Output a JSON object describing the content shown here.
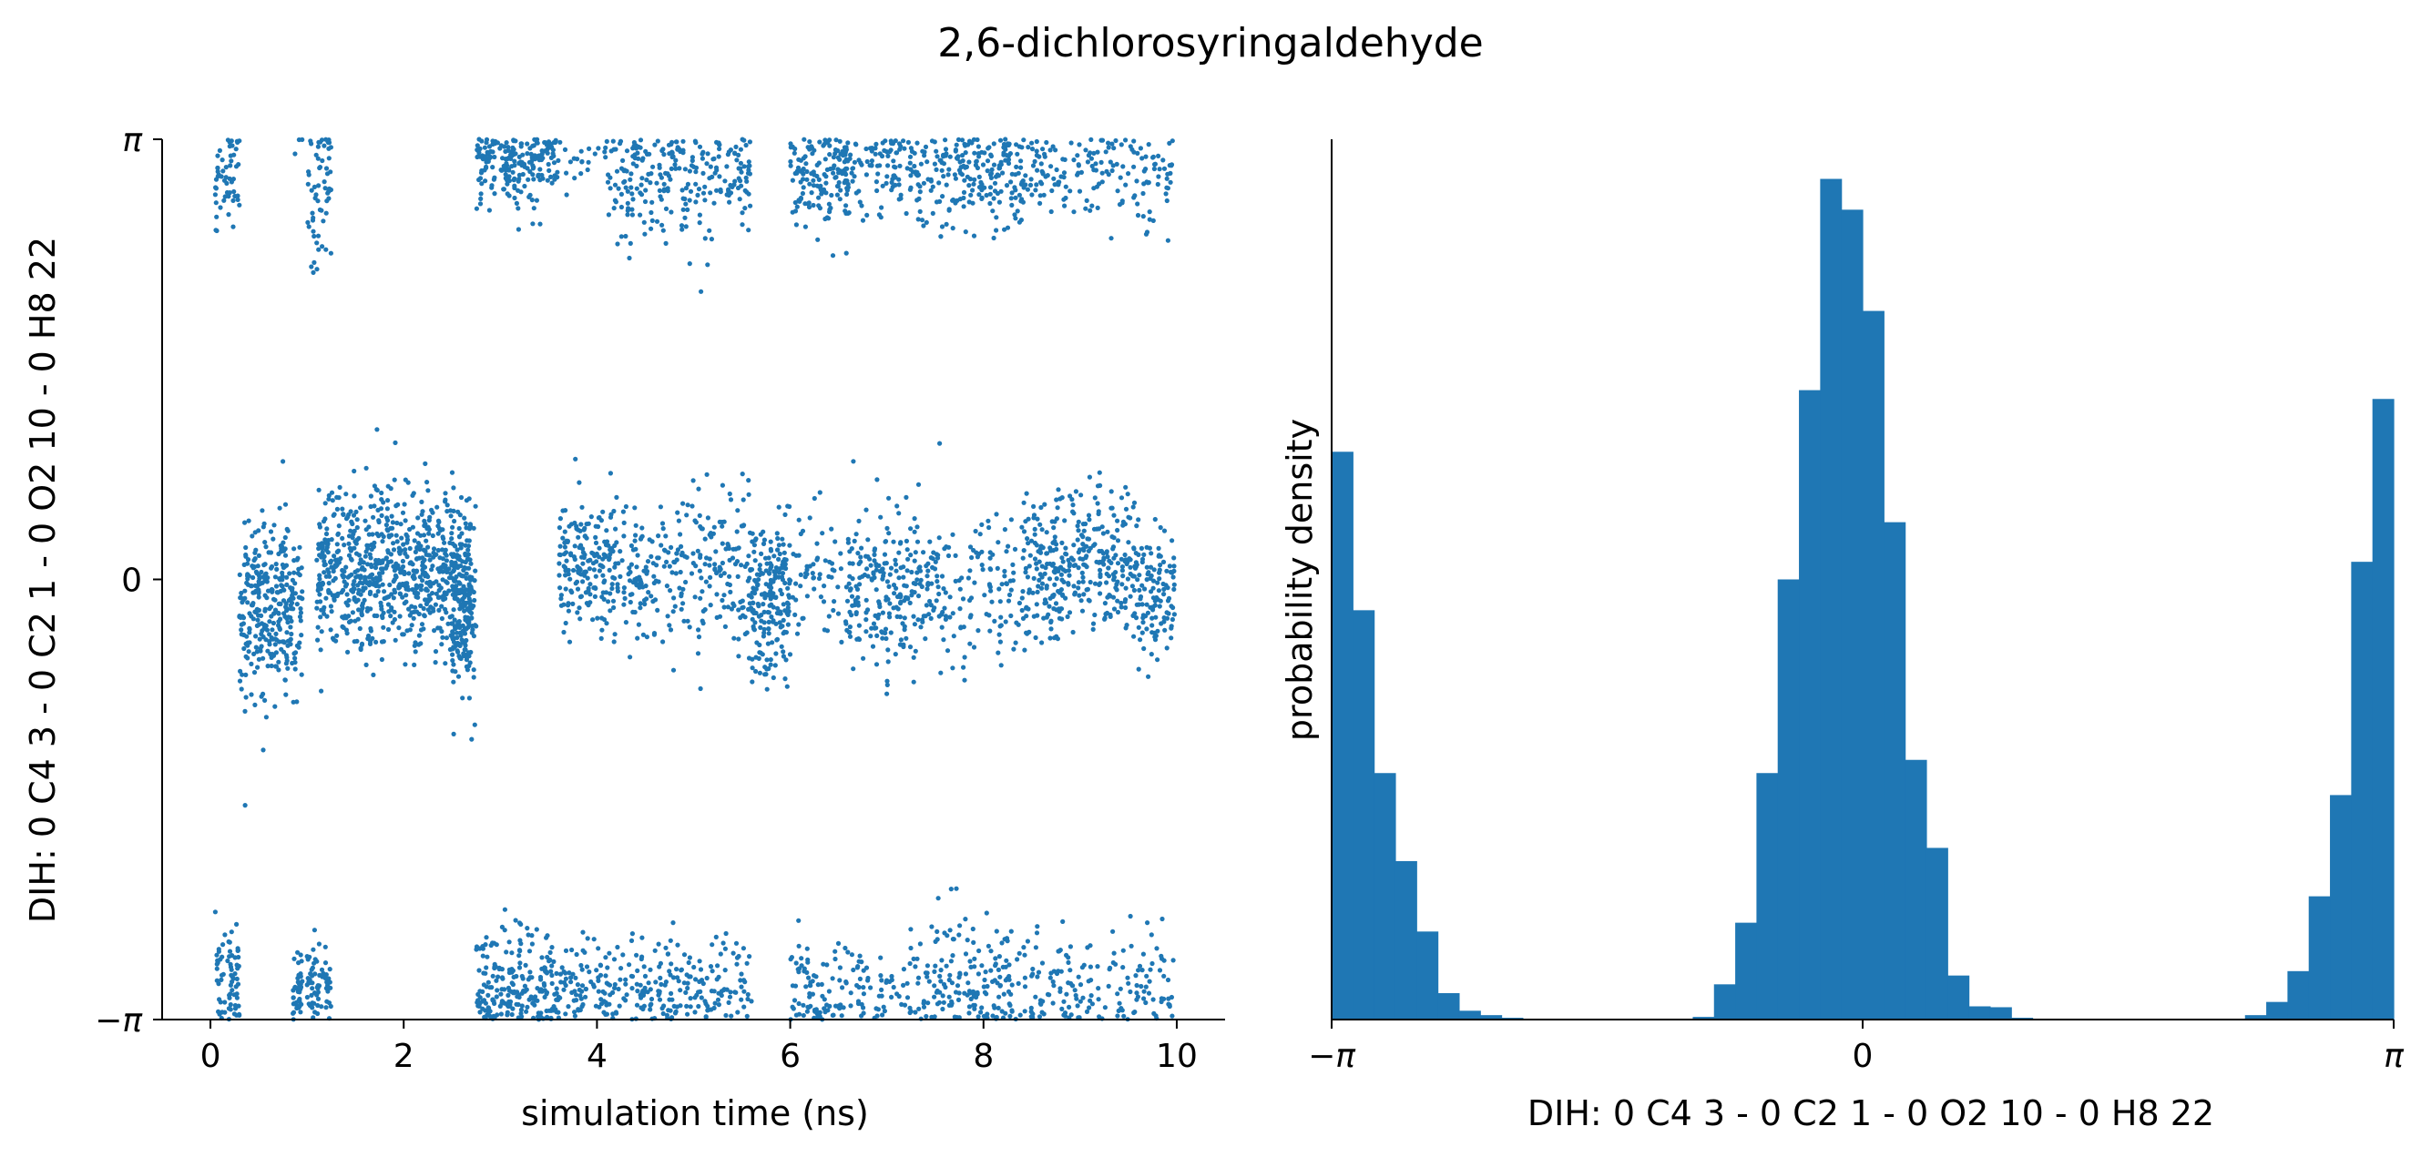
{
  "figure": {
    "title": "2,6-dichlorosyringaldehyde",
    "series_color": "#1f77b4"
  },
  "chart_data": [
    {
      "type": "scatter",
      "title": "",
      "xlabel": "simulation time (ns)",
      "ylabel": "DIH:  0 C4 3 -  0 C2 1 -  0 O2 10 -  0 H8 22",
      "xlim": [
        -0.5,
        10.5
      ],
      "ylim": [
        -3.14159,
        3.14159
      ],
      "xticks": [
        0,
        2,
        4,
        6,
        8,
        10
      ],
      "xtick_labels": [
        "0",
        "2",
        "4",
        "6",
        "8",
        "10"
      ],
      "yticks": [
        -3.14159,
        0,
        3.14159
      ],
      "ytick_labels": [
        "−π",
        "0",
        "π"
      ],
      "grid": false,
      "segments": [
        {
          "t": [
            0.05,
            0.3
          ],
          "states": [
            {
              "c": 2.9,
              "s": 0.2,
              "w": 0.4
            },
            {
              "c": -2.9,
              "s": 0.25,
              "w": 0.6
            }
          ]
        },
        {
          "t": [
            0.3,
            0.95
          ],
          "states": [
            {
              "c": -0.2,
              "s": 0.3,
              "w": 1.0
            }
          ]
        },
        {
          "t": [
            0.85,
            0.95
          ],
          "states": [
            {
              "c": -2.95,
              "s": 0.15,
              "w": 0.5
            }
          ]
        },
        {
          "t": [
            1.0,
            1.25
          ],
          "states": [
            {
              "c": 2.8,
              "s": 0.3,
              "w": 0.5
            },
            {
              "c": -2.9,
              "s": 0.2,
              "w": 0.5
            }
          ]
        },
        {
          "t": [
            1.1,
            2.7
          ],
          "states": [
            {
              "c": 0.05,
              "s": 0.28,
              "w": 1.0
            }
          ]
        },
        {
          "t": [
            2.5,
            2.75
          ],
          "states": [
            {
              "c": -0.3,
              "s": 0.3,
              "w": 1.0
            }
          ]
        },
        {
          "t": [
            2.75,
            3.6
          ],
          "states": [
            {
              "c": 3.0,
              "s": 0.2,
              "w": 0.5
            },
            {
              "c": -2.9,
              "s": 0.22,
              "w": 0.5
            }
          ]
        },
        {
          "t": [
            3.6,
            4.1
          ],
          "states": [
            {
              "c": 0.1,
              "s": 0.25,
              "w": 0.6
            },
            {
              "c": -2.95,
              "s": 0.2,
              "w": 0.4
            }
          ]
        },
        {
          "t": [
            4.1,
            5.6
          ],
          "states": [
            {
              "c": 2.9,
              "s": 0.25,
              "w": 0.35
            },
            {
              "c": 0.05,
              "s": 0.25,
              "w": 0.4
            },
            {
              "c": -2.95,
              "s": 0.2,
              "w": 0.25
            }
          ]
        },
        {
          "t": [
            5.6,
            6.0
          ],
          "states": [
            {
              "c": -0.15,
              "s": 0.28,
              "w": 1.0
            }
          ]
        },
        {
          "t": [
            6.0,
            6.6
          ],
          "states": [
            {
              "c": 2.9,
              "s": 0.2,
              "w": 0.5
            },
            {
              "c": -2.95,
              "s": 0.2,
              "w": 0.3
            },
            {
              "c": 0.0,
              "s": 0.25,
              "w": 0.2
            }
          ]
        },
        {
          "t": [
            6.6,
            7.5
          ],
          "states": [
            {
              "c": -0.05,
              "s": 0.28,
              "w": 0.5
            },
            {
              "c": 2.9,
              "s": 0.2,
              "w": 0.3
            },
            {
              "c": -2.95,
              "s": 0.2,
              "w": 0.2
            }
          ]
        },
        {
          "t": [
            7.5,
            8.4
          ],
          "states": [
            {
              "c": 2.9,
              "s": 0.2,
              "w": 0.4
            },
            {
              "c": -2.85,
              "s": 0.25,
              "w": 0.35
            },
            {
              "c": -0.1,
              "s": 0.25,
              "w": 0.25
            }
          ]
        },
        {
          "t": [
            8.4,
            9.6
          ],
          "states": [
            {
              "c": 0.1,
              "s": 0.28,
              "w": 0.6
            },
            {
              "c": -2.9,
              "s": 0.2,
              "w": 0.2
            },
            {
              "c": 2.9,
              "s": 0.2,
              "w": 0.2
            }
          ]
        },
        {
          "t": [
            9.6,
            9.98
          ],
          "states": [
            {
              "c": -0.1,
              "s": 0.25,
              "w": 0.5
            },
            {
              "c": 2.9,
              "s": 0.2,
              "w": 0.25
            },
            {
              "c": -2.85,
              "s": 0.25,
              "w": 0.25
            }
          ]
        }
      ],
      "n_points": 5200,
      "seed": 7
    },
    {
      "type": "bar",
      "subtype": "histogram",
      "title": "",
      "xlabel": "DIH:  0 C4 3 -  0 C2 1 -  0 O2 10 -  0 H8 22",
      "ylabel": "probability density",
      "xlim": [
        -3.14159,
        3.14159
      ],
      "xticks": [
        -3.14159,
        0,
        3.14159
      ],
      "xtick_labels": [
        "−π",
        "0",
        "π"
      ],
      "yticks": [],
      "bin_count": 50,
      "values": [
        0.645,
        0.465,
        0.28,
        0.18,
        0.1,
        0.03,
        0.01,
        0.005,
        0.002,
        0.001,
        0,
        0,
        0,
        0,
        0,
        0,
        0.001,
        0.003,
        0.04,
        0.11,
        0.28,
        0.5,
        0.715,
        0.955,
        0.92,
        0.805,
        0.565,
        0.295,
        0.195,
        0.05,
        0.015,
        0.014,
        0.002,
        0.001,
        0,
        0,
        0,
        0,
        0,
        0,
        0,
        0,
        0.001,
        0.005,
        0.02,
        0.055,
        0.14,
        0.255,
        0.52,
        0.705
      ],
      "bin_edges_range": [
        -3.14159,
        3.14159
      ],
      "ylim": [
        0,
        1.0
      ],
      "grid": false
    }
  ]
}
